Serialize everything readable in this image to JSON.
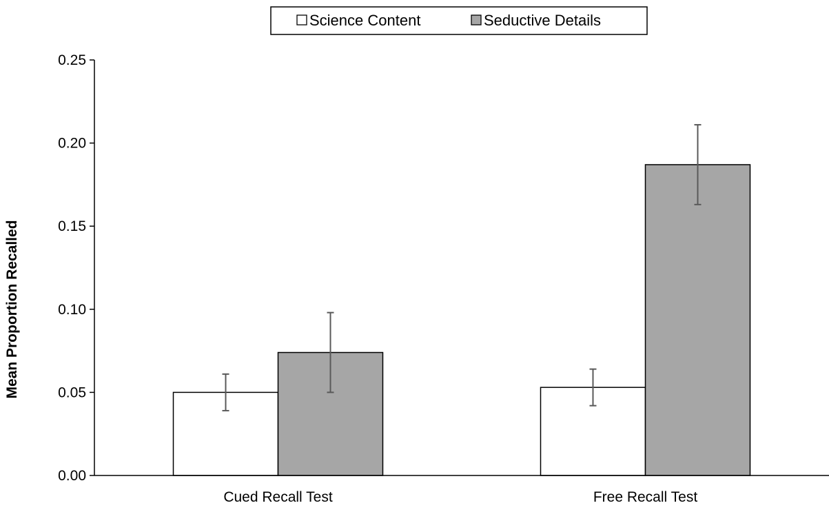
{
  "chart_data": {
    "type": "bar",
    "title": "",
    "xlabel": "",
    "ylabel": "Mean Proportion Recalled",
    "ylim": [
      0,
      0.25
    ],
    "yticks": [
      "0.00",
      "0.05",
      "0.10",
      "0.15",
      "0.20",
      "0.25"
    ],
    "categories": [
      "Cued Recall Test",
      "Free Recall Test"
    ],
    "series": [
      {
        "name": "Science Content",
        "values": [
          0.05,
          0.053
        ],
        "error": [
          0.011,
          0.011
        ],
        "color": "#ffffff"
      },
      {
        "name": "Seductive Details",
        "values": [
          0.074,
          0.187
        ],
        "error": [
          0.024,
          0.024
        ],
        "color": "#a6a6a6"
      }
    ],
    "legend_position": "top-center",
    "grid": false,
    "error_bar_color": "#595959",
    "bar_edge_color": "#000000"
  }
}
